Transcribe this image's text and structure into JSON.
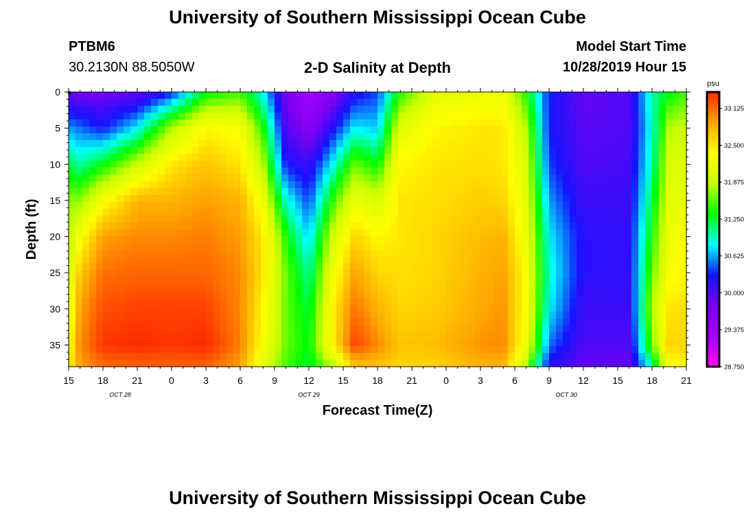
{
  "page": {
    "title_top": "University of Southern Mississippi Ocean Cube",
    "title_bottom": "University of Southern Mississippi Ocean Cube",
    "station": "PTBM6",
    "location": "30.2130N 88.5050W",
    "plot_title": "2-D Salinity at Depth",
    "model_start_label": "Model Start Time",
    "model_start_value": "10/28/2019 Hour 15"
  },
  "chart_data": {
    "type": "heatmap",
    "title": "2-D Salinity at Depth",
    "xlabel": "Forecast Time(Z)",
    "ylabel": "Depth (ft)",
    "x_tick_labels": [
      "15",
      "18",
      "21",
      "0",
      "3",
      "6",
      "9",
      "12",
      "15",
      "18",
      "21",
      "0",
      "3",
      "6",
      "9",
      "12",
      "15",
      "18",
      "21"
    ],
    "x_hours": [
      0,
      3,
      6,
      9,
      12,
      15,
      18,
      21,
      24,
      27,
      30,
      33,
      36,
      39,
      42,
      45,
      48,
      51,
      54
    ],
    "date_labels": [
      {
        "label": "OCT 28",
        "hour": 4.5
      },
      {
        "label": "OCT 29",
        "hour": 21
      },
      {
        "label": "OCT 30",
        "hour": 43.5
      }
    ],
    "y_ticks": [
      0,
      5,
      10,
      15,
      20,
      25,
      30,
      35
    ],
    "ylim": [
      38,
      0
    ],
    "xlim": [
      0,
      54
    ],
    "colorbar": {
      "unit": "psu",
      "vmin": 28.75,
      "vmax": 33.4,
      "tick_values": [
        33.125,
        32.5,
        31.875,
        31.25,
        30.625,
        30.0,
        29.375,
        28.75
      ],
      "tick_labels": [
        "33.125",
        "32.500",
        "31.875",
        "31.250",
        "30.625",
        "30.000",
        "29.375",
        "28.750"
      ],
      "colors": [
        "#ff00ff",
        "#a000ff",
        "#7a00f0",
        "#1414ff",
        "#00ffff",
        "#00ff00",
        "#c8ff00",
        "#ffff00",
        "#ffa500",
        "#ff2a00"
      ]
    },
    "depths_ft": [
      0,
      5,
      10,
      15,
      20,
      25,
      30,
      35,
      38
    ],
    "columns": [
      {
        "hour": 0,
        "salinity": [
          29.9,
          30.6,
          31.2,
          31.7,
          31.8,
          31.9,
          32.1,
          32.3,
          32.4
        ]
      },
      {
        "hour": 1,
        "salinity": [
          29.8,
          30.5,
          31.0,
          31.7,
          32.3,
          32.7,
          32.9,
          33.0,
          32.9
        ]
      },
      {
        "hour": 3,
        "salinity": [
          29.8,
          30.3,
          31.3,
          32.3,
          32.9,
          33.1,
          33.25,
          33.35,
          33.1
        ]
      },
      {
        "hour": 6,
        "salinity": [
          29.9,
          30.8,
          31.9,
          32.8,
          33.0,
          33.15,
          33.3,
          33.4,
          33.15
        ]
      },
      {
        "hour": 9,
        "salinity": [
          30.3,
          31.8,
          32.5,
          32.8,
          33.0,
          33.15,
          33.3,
          33.35,
          33.15
        ]
      },
      {
        "hour": 12,
        "salinity": [
          31.3,
          32.4,
          32.7,
          32.9,
          33.05,
          33.15,
          33.3,
          33.4,
          33.15
        ]
      },
      {
        "hour": 15,
        "salinity": [
          31.5,
          32.3,
          32.5,
          32.8,
          32.9,
          33.0,
          33.0,
          33.05,
          32.9
        ]
      },
      {
        "hour": 17,
        "salinity": [
          30.8,
          31.4,
          31.8,
          32.2,
          32.5,
          32.5,
          32.4,
          32.3,
          32.1
        ]
      },
      {
        "hour": 19,
        "salinity": [
          29.8,
          30.0,
          30.3,
          30.9,
          31.4,
          31.6,
          31.6,
          31.6,
          31.5
        ]
      },
      {
        "hour": 21,
        "salinity": [
          29.2,
          29.6,
          30.1,
          30.4,
          30.7,
          31.0,
          31.2,
          31.3,
          31.2
        ]
      },
      {
        "hour": 23,
        "salinity": [
          29.6,
          30.2,
          30.8,
          31.4,
          31.9,
          32.2,
          32.4,
          32.4,
          31.8
        ]
      },
      {
        "hour": 25,
        "salinity": [
          30.2,
          30.8,
          31.6,
          32.2,
          32.6,
          32.9,
          33.1,
          33.3,
          32.7
        ]
      },
      {
        "hour": 27,
        "salinity": [
          30.4,
          30.7,
          31.3,
          32.0,
          32.4,
          32.6,
          32.8,
          33.0,
          32.7
        ]
      },
      {
        "hour": 29,
        "salinity": [
          31.4,
          32.1,
          32.4,
          32.5,
          32.5,
          32.55,
          32.6,
          32.7,
          32.6
        ]
      },
      {
        "hour": 32,
        "salinity": [
          32.1,
          32.4,
          32.5,
          32.55,
          32.6,
          32.6,
          32.65,
          32.75,
          32.6
        ]
      },
      {
        "hour": 36,
        "salinity": [
          32.2,
          32.5,
          32.55,
          32.65,
          32.75,
          32.8,
          32.85,
          32.95,
          32.8
        ]
      },
      {
        "hour": 38,
        "salinity": [
          32.2,
          32.5,
          32.5,
          32.6,
          32.8,
          32.9,
          32.95,
          33.0,
          32.8
        ]
      },
      {
        "hour": 40,
        "salinity": [
          31.4,
          31.8,
          32.0,
          32.1,
          32.2,
          32.3,
          32.3,
          32.2,
          31.8
        ]
      },
      {
        "hour": 42,
        "salinity": [
          30.3,
          30.3,
          30.4,
          30.6,
          30.8,
          30.9,
          30.8,
          30.5,
          30.2
        ]
      },
      {
        "hour": 45,
        "salinity": [
          29.9,
          29.95,
          30.0,
          30.1,
          30.2,
          30.2,
          30.1,
          30.0,
          29.9
        ]
      },
      {
        "hour": 49,
        "salinity": [
          30.0,
          30.0,
          30.05,
          30.1,
          30.15,
          30.15,
          30.1,
          30.0,
          29.9
        ]
      },
      {
        "hour": 51,
        "salinity": [
          31.0,
          30.9,
          31.0,
          31.2,
          31.4,
          31.6,
          31.8,
          31.6,
          31.0
        ]
      },
      {
        "hour": 52.5,
        "salinity": [
          31.3,
          31.8,
          32.0,
          32.1,
          32.2,
          32.3,
          32.5,
          32.6,
          32.3
        ]
      },
      {
        "hour": 54,
        "salinity": [
          31.5,
          31.9,
          32.1,
          32.2,
          32.3,
          32.4,
          32.55,
          32.6,
          32.4
        ]
      }
    ]
  }
}
